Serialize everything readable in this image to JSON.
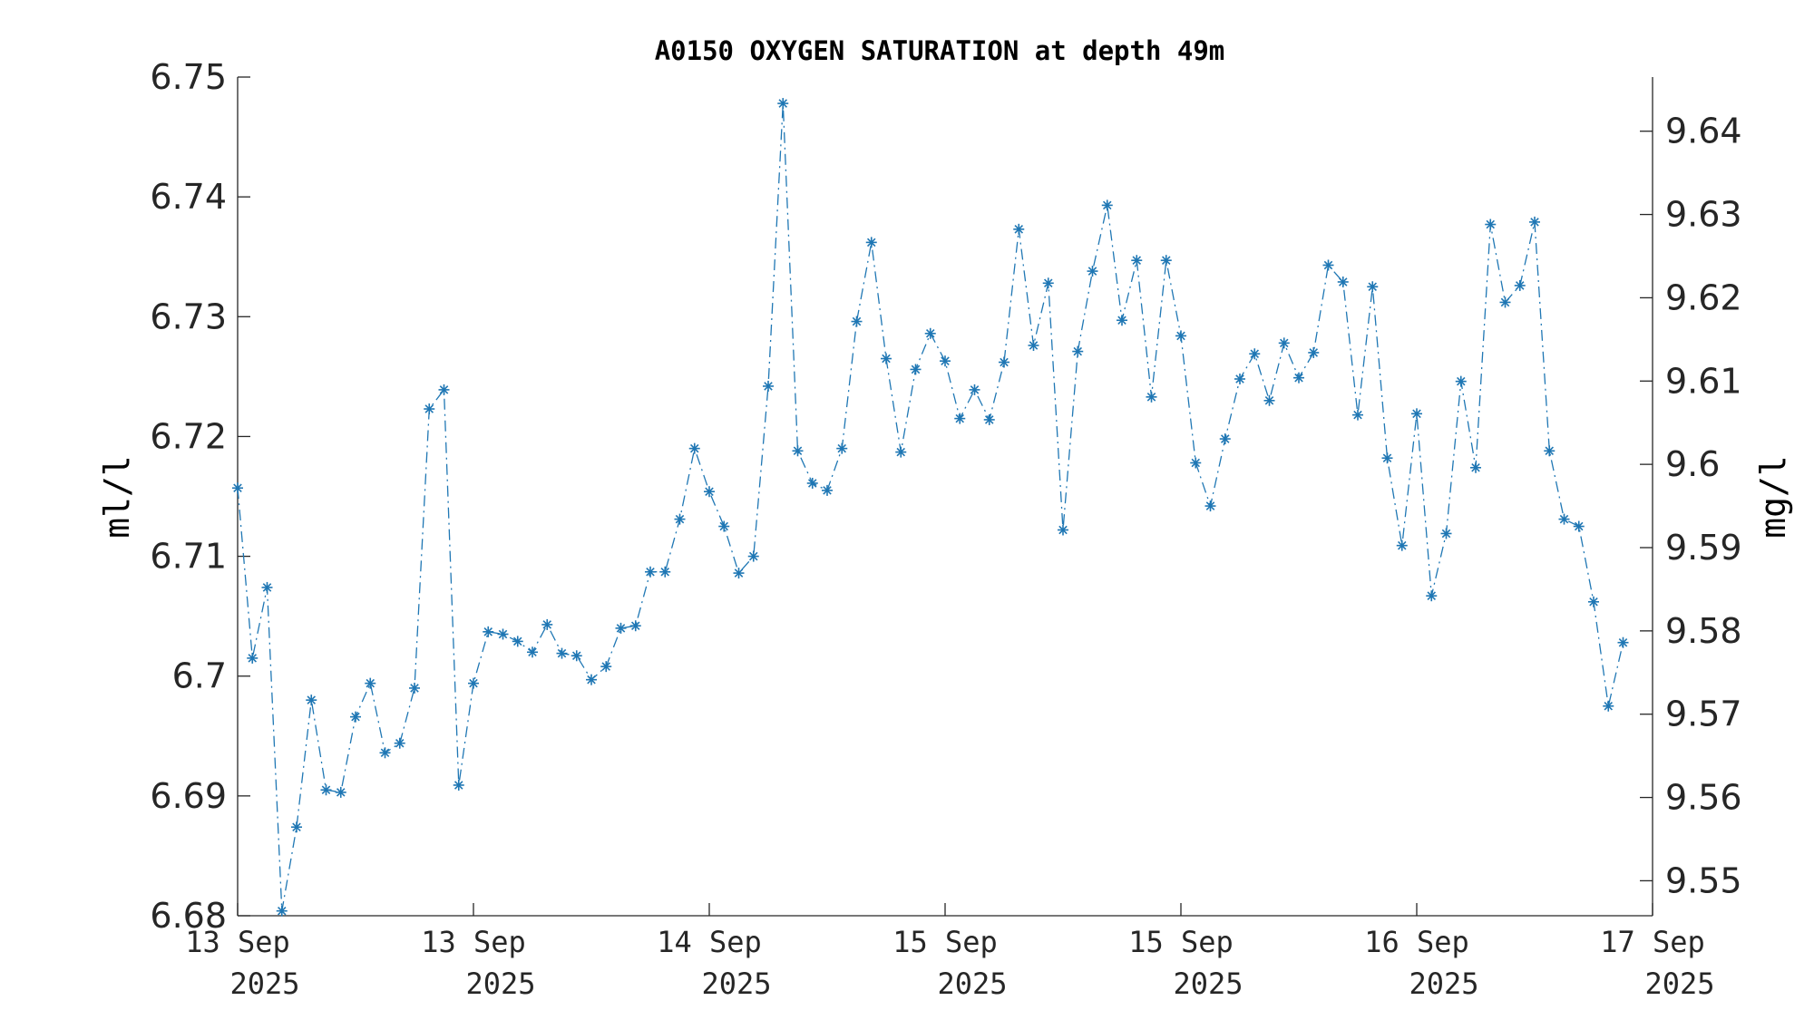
{
  "chart_data": {
    "type": "line",
    "title": "A0150 OXYGEN SATURATION at depth 49m",
    "ylabel_left": "ml/l",
    "ylabel_right": "mg/l",
    "ylim_left": [
      6.68,
      6.75
    ],
    "ylim_right": [
      9.5458,
      9.6465
    ],
    "left_ticks": [
      "6.68",
      "6.69",
      "6.7",
      "6.71",
      "6.72",
      "6.73",
      "6.74",
      "6.75"
    ],
    "left_tick_values": [
      6.68,
      6.69,
      6.7,
      6.71,
      6.72,
      6.73,
      6.74,
      6.75
    ],
    "right_ticks": [
      "9.55",
      "9.56",
      "9.57",
      "9.58",
      "9.59",
      "9.6",
      "9.61",
      "9.62",
      "9.63",
      "9.64"
    ],
    "right_tick_values": [
      9.55,
      9.56,
      9.57,
      9.58,
      9.59,
      9.6,
      9.61,
      9.62,
      9.63,
      9.64
    ],
    "x_range": [
      "2025-09-13T00:00",
      "2025-09-17T00:00"
    ],
    "x_ticks": [
      {
        "day": "13 Sep",
        "year": "2025",
        "t": "2025-09-13T00:00"
      },
      {
        "day": "13 Sep",
        "year": "2025",
        "t": "2025-09-13T16:00"
      },
      {
        "day": "14 Sep",
        "year": "2025",
        "t": "2025-09-14T08:00"
      },
      {
        "day": "15 Sep",
        "year": "2025",
        "t": "2025-09-15T00:00"
      },
      {
        "day": "15 Sep",
        "year": "2025",
        "t": "2025-09-15T16:00"
      },
      {
        "day": "16 Sep",
        "year": "2025",
        "t": "2025-09-16T08:00"
      },
      {
        "day": "17 Sep",
        "year": "2025",
        "t": "2025-09-17T00:00"
      }
    ],
    "grid": false,
    "series": [
      {
        "marker": "asterisk",
        "line_style": "dash-dot",
        "color": "#1f77b4",
        "points": [
          [
            "2025-09-13T00:00",
            6.7157
          ],
          [
            "2025-09-13T01:00",
            6.7015
          ],
          [
            "2025-09-13T02:00",
            6.7074
          ],
          [
            "2025-09-13T03:00",
            6.6804
          ],
          [
            "2025-09-13T04:00",
            6.6874
          ],
          [
            "2025-09-13T05:00",
            6.698
          ],
          [
            "2025-09-13T06:00",
            6.6905
          ],
          [
            "2025-09-13T07:00",
            6.6903
          ],
          [
            "2025-09-13T08:00",
            6.6966
          ],
          [
            "2025-09-13T09:00",
            6.6994
          ],
          [
            "2025-09-13T10:00",
            6.6936
          ],
          [
            "2025-09-13T11:00",
            6.6944
          ],
          [
            "2025-09-13T12:00",
            6.699
          ],
          [
            "2025-09-13T13:00",
            6.7223
          ],
          [
            "2025-09-13T14:00",
            6.7239
          ],
          [
            "2025-09-13T15:00",
            6.6909
          ],
          [
            "2025-09-13T16:00",
            6.6994
          ],
          [
            "2025-09-13T17:00",
            6.7037
          ],
          [
            "2025-09-13T18:00",
            6.7035
          ],
          [
            "2025-09-13T19:00",
            6.7029
          ],
          [
            "2025-09-13T20:00",
            6.702
          ],
          [
            "2025-09-13T21:00",
            6.7043
          ],
          [
            "2025-09-13T22:00",
            6.7019
          ],
          [
            "2025-09-13T23:00",
            6.7017
          ],
          [
            "2025-09-14T00:00",
            6.6997
          ],
          [
            "2025-09-14T01:00",
            6.7008
          ],
          [
            "2025-09-14T02:00",
            6.704
          ],
          [
            "2025-09-14T03:00",
            6.7042
          ],
          [
            "2025-09-14T04:00",
            6.7087
          ],
          [
            "2025-09-14T05:00",
            6.7087
          ],
          [
            "2025-09-14T06:00",
            6.7131
          ],
          [
            "2025-09-14T07:00",
            6.719
          ],
          [
            "2025-09-14T08:00",
            6.7154
          ],
          [
            "2025-09-14T09:00",
            6.7125
          ],
          [
            "2025-09-14T10:00",
            6.7086
          ],
          [
            "2025-09-14T11:00",
            6.71
          ],
          [
            "2025-09-14T12:00",
            6.7242
          ],
          [
            "2025-09-14T13:00",
            6.7478
          ],
          [
            "2025-09-14T14:00",
            6.7188
          ],
          [
            "2025-09-14T15:00",
            6.7161
          ],
          [
            "2025-09-14T16:00",
            6.7155
          ],
          [
            "2025-09-14T17:00",
            6.719
          ],
          [
            "2025-09-14T18:00",
            6.7296
          ],
          [
            "2025-09-14T19:00",
            6.7362
          ],
          [
            "2025-09-14T20:00",
            6.7265
          ],
          [
            "2025-09-14T21:00",
            6.7187
          ],
          [
            "2025-09-14T22:00",
            6.7256
          ],
          [
            "2025-09-14T23:00",
            6.7286
          ],
          [
            "2025-09-15T00:00",
            6.7263
          ],
          [
            "2025-09-15T01:00",
            6.7215
          ],
          [
            "2025-09-15T02:00",
            6.7239
          ],
          [
            "2025-09-15T03:00",
            6.7214
          ],
          [
            "2025-09-15T04:00",
            6.7262
          ],
          [
            "2025-09-15T05:00",
            6.7373
          ],
          [
            "2025-09-15T06:00",
            6.7276
          ],
          [
            "2025-09-15T07:00",
            6.7328
          ],
          [
            "2025-09-15T08:00",
            6.7122
          ],
          [
            "2025-09-15T09:00",
            6.7271
          ],
          [
            "2025-09-15T10:00",
            6.7338
          ],
          [
            "2025-09-15T11:00",
            6.7393
          ],
          [
            "2025-09-15T12:00",
            6.7297
          ],
          [
            "2025-09-15T13:00",
            6.7347
          ],
          [
            "2025-09-15T14:00",
            6.7233
          ],
          [
            "2025-09-15T15:00",
            6.7347
          ],
          [
            "2025-09-15T16:00",
            6.7284
          ],
          [
            "2025-09-15T17:00",
            6.7178
          ],
          [
            "2025-09-15T18:00",
            6.7142
          ],
          [
            "2025-09-15T19:00",
            6.7198
          ],
          [
            "2025-09-15T20:00",
            6.7248
          ],
          [
            "2025-09-15T21:00",
            6.7269
          ],
          [
            "2025-09-15T22:00",
            6.723
          ],
          [
            "2025-09-15T23:00",
            6.7278
          ],
          [
            "2025-09-16T00:00",
            6.7249
          ],
          [
            "2025-09-16T01:00",
            6.727
          ],
          [
            "2025-09-16T02:00",
            6.7343
          ],
          [
            "2025-09-16T03:00",
            6.7329
          ],
          [
            "2025-09-16T04:00",
            6.7218
          ],
          [
            "2025-09-16T05:00",
            6.7325
          ],
          [
            "2025-09-16T06:00",
            6.7182
          ],
          [
            "2025-09-16T07:00",
            6.7109
          ],
          [
            "2025-09-16T08:00",
            6.7219
          ],
          [
            "2025-09-16T09:00",
            6.7067
          ],
          [
            "2025-09-16T10:00",
            6.7119
          ],
          [
            "2025-09-16T11:00",
            6.7246
          ],
          [
            "2025-09-16T12:00",
            6.7174
          ],
          [
            "2025-09-16T13:00",
            6.7377
          ],
          [
            "2025-09-16T14:00",
            6.7312
          ],
          [
            "2025-09-16T15:00",
            6.7326
          ],
          [
            "2025-09-16T16:00",
            6.7379
          ],
          [
            "2025-09-16T17:00",
            6.7188
          ],
          [
            "2025-09-16T18:00",
            6.7131
          ],
          [
            "2025-09-16T19:00",
            6.7125
          ],
          [
            "2025-09-16T20:00",
            6.7062
          ],
          [
            "2025-09-16T21:00",
            6.6975
          ],
          [
            "2025-09-16T22:00",
            6.7028
          ]
        ]
      }
    ]
  }
}
